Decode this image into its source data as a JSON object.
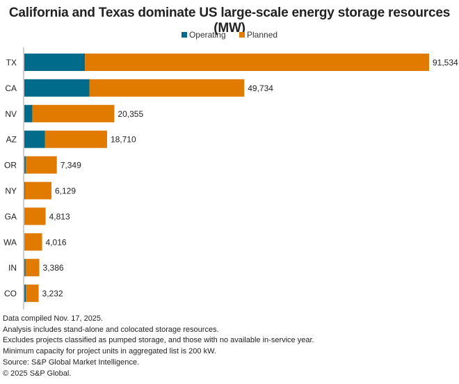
{
  "chart_data": {
    "type": "bar",
    "orientation": "horizontal",
    "stacked": true,
    "title": "California and Texas dominate US large-scale energy storage resources (MW)",
    "xlabel": "",
    "ylabel": "",
    "xlim": [
      0,
      91534
    ],
    "grid": false,
    "legend_position": "top-center",
    "categories": [
      "TX",
      "CA",
      "NV",
      "AZ",
      "OR",
      "NY",
      "GA",
      "WA",
      "IN",
      "CO"
    ],
    "totals": [
      91534,
      49734,
      20355,
      18710,
      7349,
      6129,
      4813,
      4016,
      3386,
      3232
    ],
    "total_labels": [
      "91,534",
      "49,734",
      "20,355",
      "18,710",
      "7,349",
      "6,129",
      "4,813",
      "4,016",
      "3,386",
      "3,232"
    ],
    "series": [
      {
        "name": "Operating",
        "color": "#006b8a",
        "values": [
          13700,
          14700,
          1800,
          4650,
          300,
          150,
          0,
          0,
          250,
          350
        ]
      },
      {
        "name": "Planned",
        "color": "#e07b00",
        "values": [
          77834,
          35034,
          18555,
          14060,
          7049,
          5979,
          4813,
          4016,
          3136,
          2882
        ]
      }
    ]
  },
  "footnotes": [
    "Data compiled Nov. 17, 2025.",
    "Analysis includes stand-alone and colocated storage resources.",
    "Excludes projects classified as pumped storage, and those with no available in-service year.",
    "Minimum capacity for project units in aggregated list is 200 kW.",
    "Source: S&P Global Market Intelligence.",
    "© 2025 S&P Global."
  ]
}
